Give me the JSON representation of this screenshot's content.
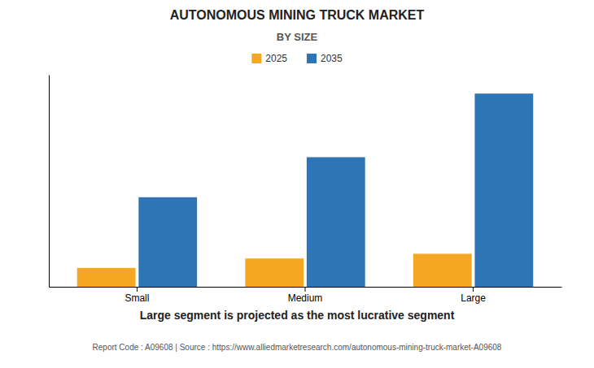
{
  "chart_data": {
    "type": "bar",
    "title": "AUTONOMOUS MINING TRUCK MARKET",
    "subtitle": "BY SIZE",
    "categories": [
      "Small",
      "Medium",
      "Large"
    ],
    "series": [
      {
        "name": "2025",
        "color": "#F5A623",
        "values": [
          0.08,
          0.12,
          0.14
        ]
      },
      {
        "name": "2035",
        "color": "#2E75B6",
        "values": [
          0.38,
          0.55,
          0.82
        ]
      }
    ],
    "ylim": [
      0,
      0.9
    ],
    "yticks": [],
    "tick_labels": "x",
    "grid": false,
    "legend": "top",
    "footnote": "Large segment is projected as the most lucrative segment",
    "source": "Report Code : A09608  |  Source : https://www.alliedmarketresearch.com/autonomous-mining-truck-market-A09608"
  }
}
